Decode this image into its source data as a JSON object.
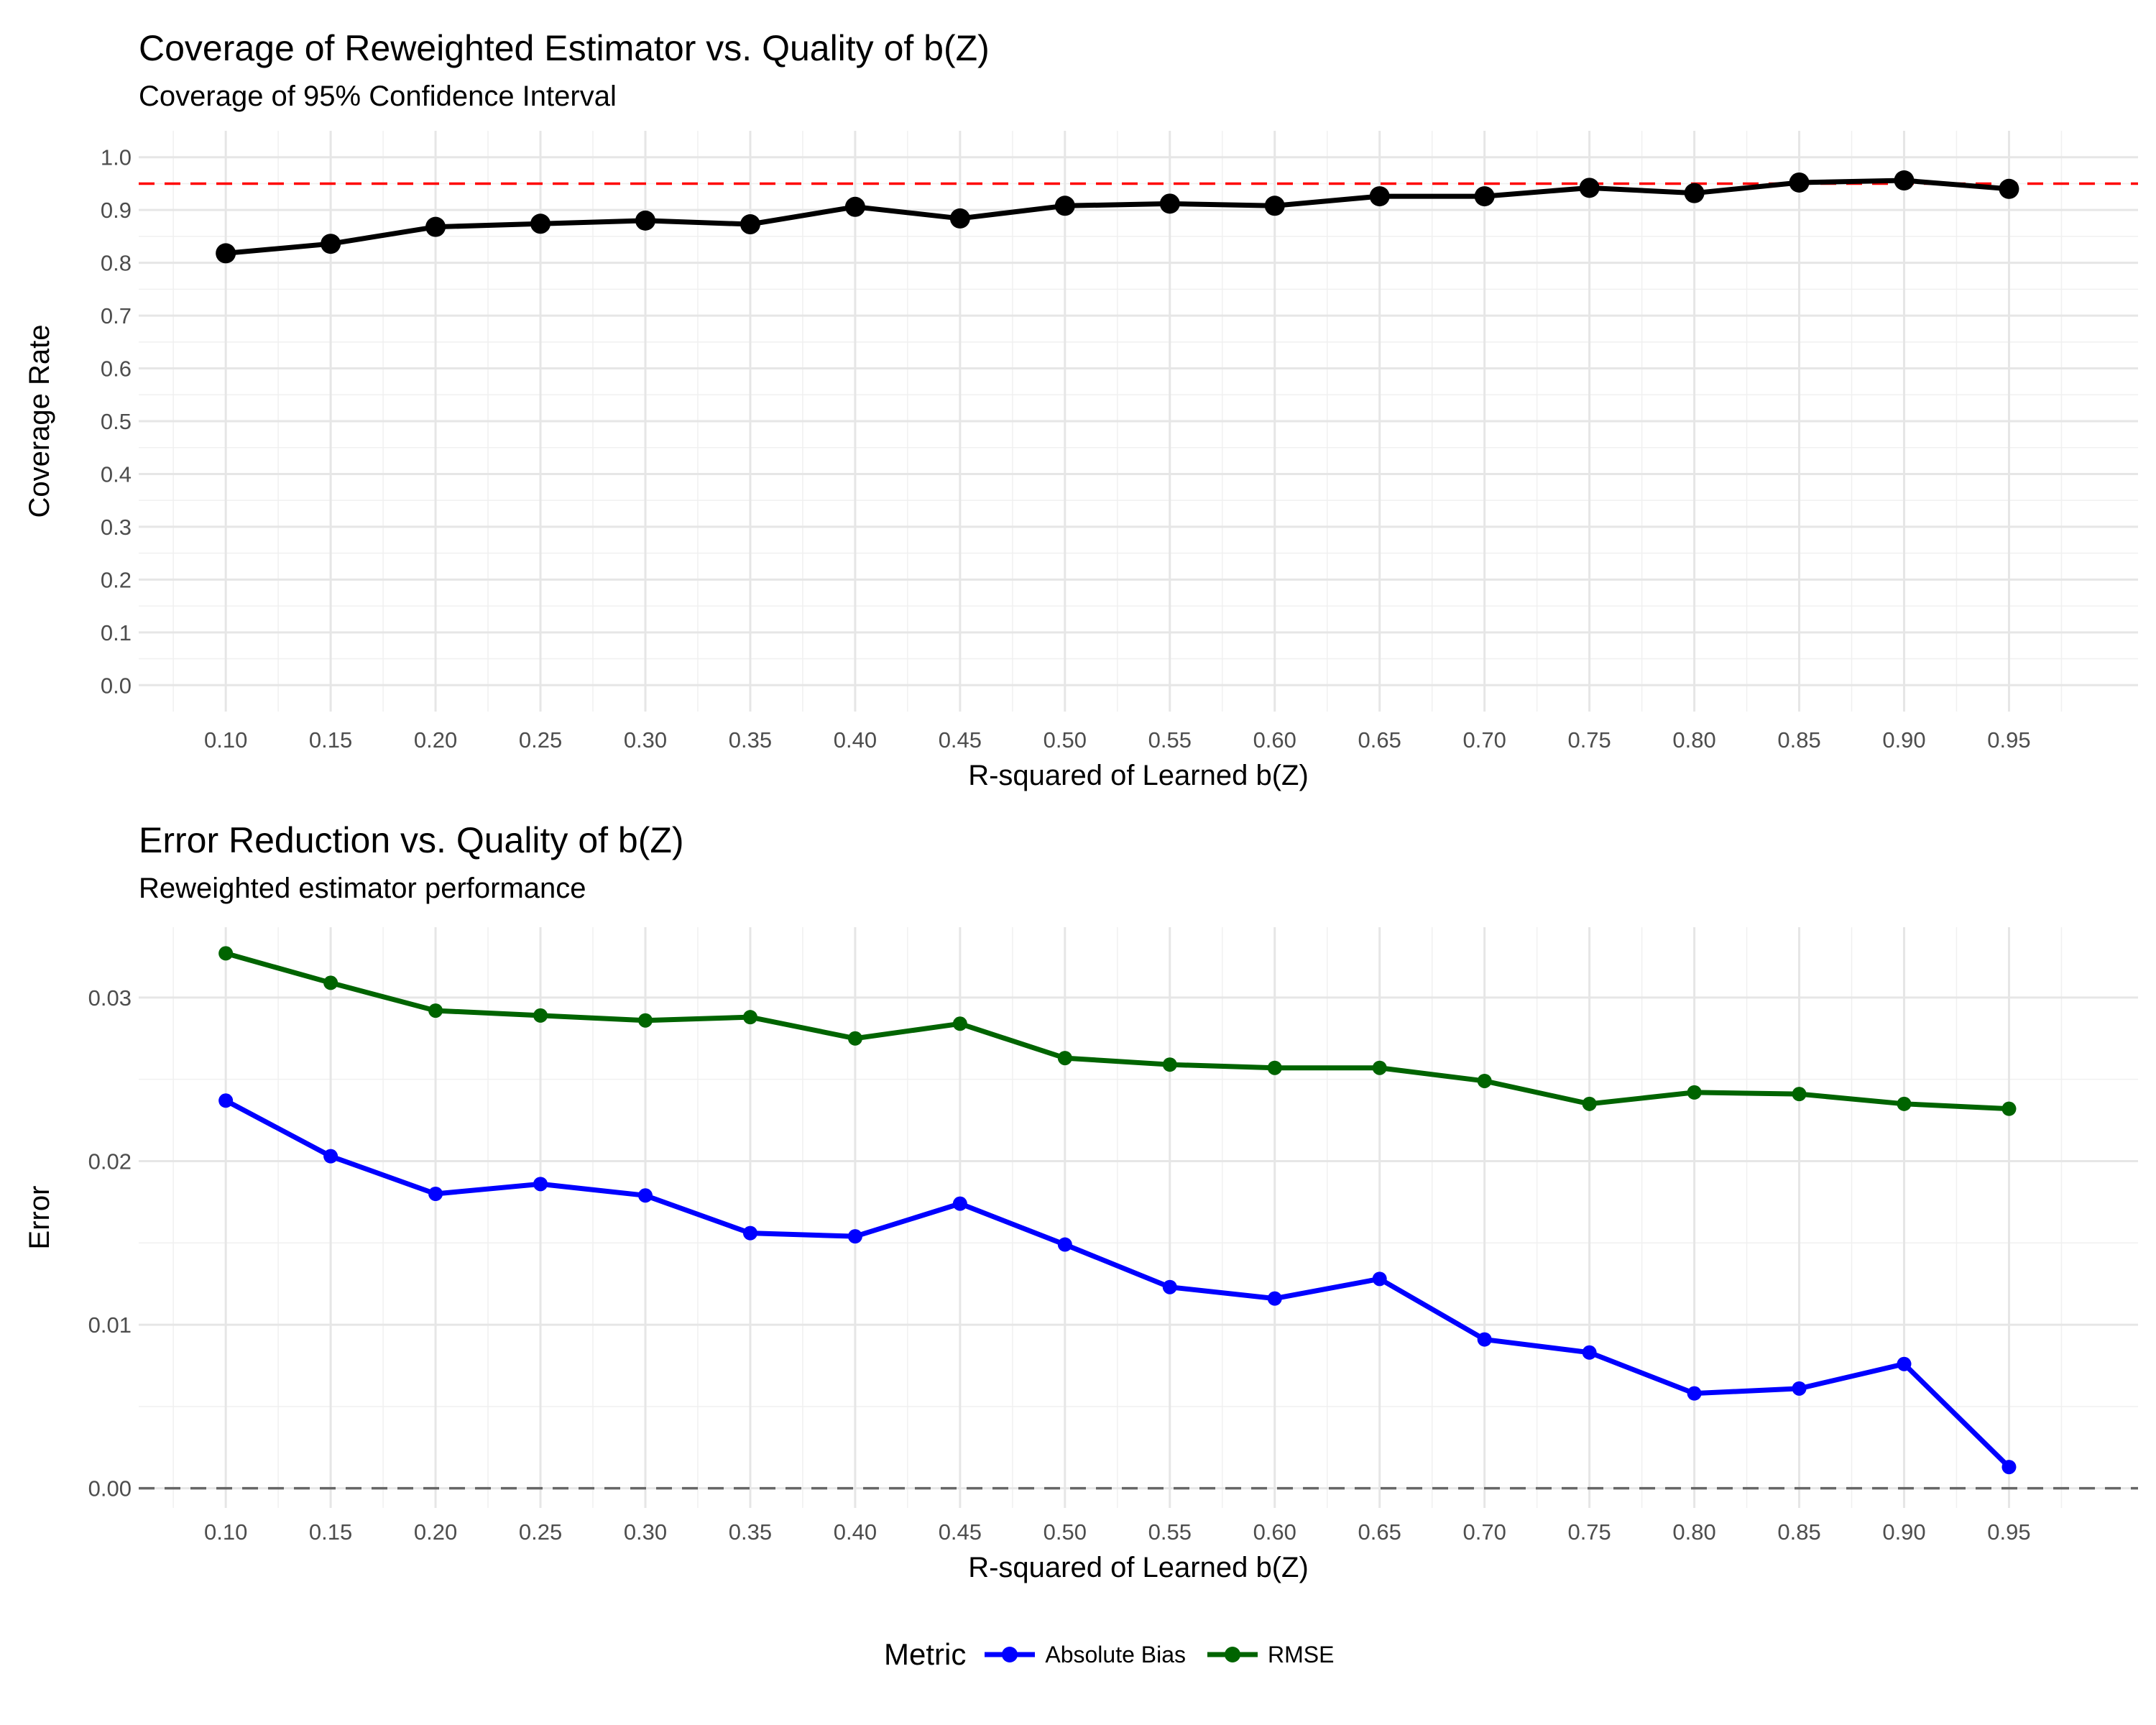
{
  "chart_data": [
    {
      "type": "line",
      "title": "Coverage of Reweighted Estimator vs. Quality of b(Z)",
      "subtitle": "Coverage of 95% Confidence Interval",
      "xlabel": "R-squared of Learned b(Z)",
      "ylabel": "Coverage Rate",
      "x": [
        0.1,
        0.15,
        0.2,
        0.25,
        0.3,
        0.35,
        0.4,
        0.45,
        0.5,
        0.55,
        0.6,
        0.65,
        0.7,
        0.75,
        0.8,
        0.85,
        0.9,
        0.95
      ],
      "x_tick_labels": [
        "0.10",
        "0.15",
        "0.20",
        "0.25",
        "0.30",
        "0.35",
        "0.40",
        "0.45",
        "0.50",
        "0.55",
        "0.60",
        "0.65",
        "0.70",
        "0.75",
        "0.80",
        "0.85",
        "0.90",
        "0.95"
      ],
      "series": [
        {
          "color": "#000000",
          "values": [
            0.818,
            0.836,
            0.868,
            0.874,
            0.88,
            0.873,
            0.906,
            0.884,
            0.908,
            0.912,
            0.908,
            0.926,
            0.926,
            0.942,
            0.932,
            0.952,
            0.956,
            0.94
          ]
        }
      ],
      "reference_lines": [
        {
          "y": 0.95,
          "color": "#ff0000",
          "style": "dashed"
        }
      ],
      "xlim": [
        0.0585,
        1.0115
      ],
      "ylim": [
        -0.05,
        1.05
      ],
      "y_ticks": [
        0.0,
        0.1,
        0.2,
        0.3,
        0.4,
        0.5,
        0.6,
        0.7,
        0.8,
        0.9,
        1.0
      ],
      "y_tick_labels": [
        "0.0",
        "0.1",
        "0.2",
        "0.3",
        "0.4",
        "0.5",
        "0.6",
        "0.7",
        "0.8",
        "0.9",
        "1.0"
      ],
      "grid": true
    },
    {
      "type": "line",
      "title": "Error Reduction vs. Quality of b(Z)",
      "subtitle": "Reweighted estimator performance",
      "xlabel": "R-squared of Learned b(Z)",
      "ylabel": "Error",
      "x": [
        0.1,
        0.15,
        0.2,
        0.25,
        0.3,
        0.35,
        0.4,
        0.45,
        0.5,
        0.55,
        0.6,
        0.65,
        0.7,
        0.75,
        0.8,
        0.85,
        0.9,
        0.95
      ],
      "x_tick_labels": [
        "0.10",
        "0.15",
        "0.20",
        "0.25",
        "0.30",
        "0.35",
        "0.40",
        "0.45",
        "0.50",
        "0.55",
        "0.60",
        "0.65",
        "0.70",
        "0.75",
        "0.80",
        "0.85",
        "0.90",
        "0.95"
      ],
      "series": [
        {
          "name": "Absolute Bias",
          "color": "#0000ff",
          "values": [
            0.0237,
            0.0203,
            0.018,
            0.0186,
            0.0179,
            0.0156,
            0.0154,
            0.0174,
            0.0149,
            0.0123,
            0.0116,
            0.0128,
            0.0091,
            0.0083,
            0.0058,
            0.0061,
            0.0076,
            0.0013
          ]
        },
        {
          "name": "RMSE",
          "color": "#006400",
          "values": [
            0.0327,
            0.0309,
            0.0292,
            0.0289,
            0.0286,
            0.0288,
            0.0275,
            0.0284,
            0.0263,
            0.0259,
            0.0257,
            0.0257,
            0.0249,
            0.0235,
            0.0242,
            0.0241,
            0.0235,
            0.0232
          ]
        }
      ],
      "reference_lines": [
        {
          "y": 0.0,
          "color": "#666666",
          "style": "dashed"
        }
      ],
      "xlim": [
        0.0585,
        1.0115
      ],
      "ylim": [
        -0.0012,
        0.0343
      ],
      "y_ticks": [
        0.0,
        0.01,
        0.02,
        0.03
      ],
      "y_tick_labels": [
        "0.00",
        "0.01",
        "0.02",
        "0.03"
      ],
      "grid": true
    }
  ],
  "legend": {
    "title": "Metric",
    "items": [
      {
        "label": "Absolute Bias",
        "color": "#0000ff"
      },
      {
        "label": "RMSE",
        "color": "#006400"
      }
    ],
    "placement": "bottom"
  }
}
